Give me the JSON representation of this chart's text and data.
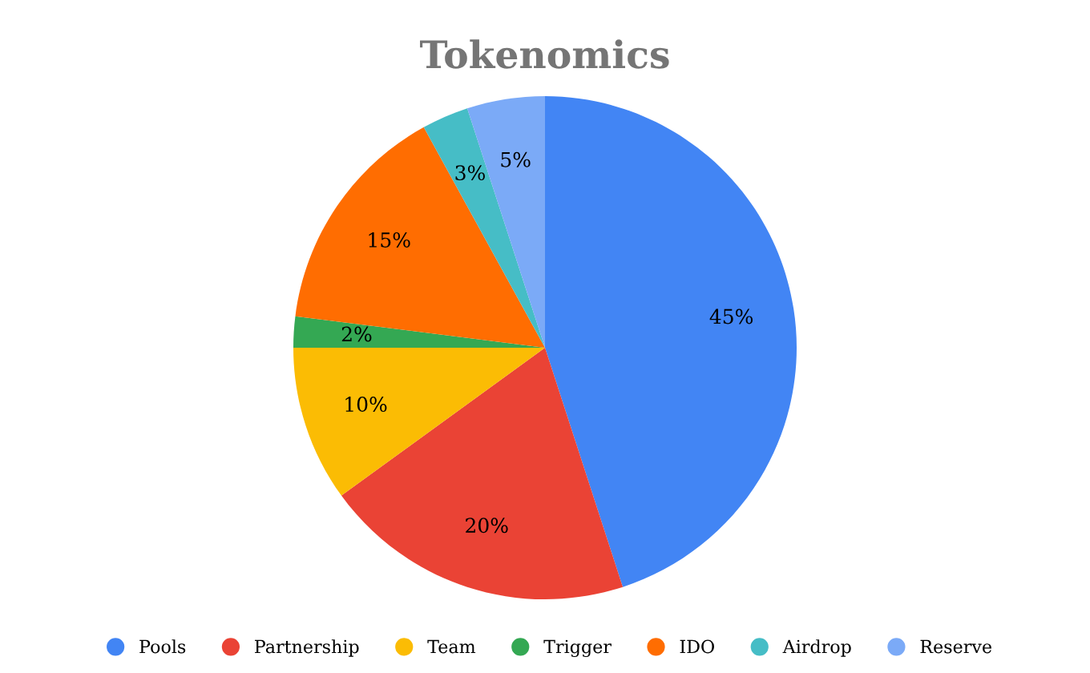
{
  "chart_data": {
    "type": "pie",
    "title": "Tokenomics",
    "categories": [
      "Pools",
      "Partnership",
      "Team",
      "Trigger",
      "IDO",
      "Airdrop",
      "Reserve"
    ],
    "values": [
      45,
      20,
      10,
      2,
      15,
      3,
      5
    ],
    "colors": [
      "#4285f4",
      "#ea4335",
      "#fbbc04",
      "#34a853",
      "#ff6d01",
      "#46bdc6",
      "#7baaf7"
    ],
    "value_labels": [
      "45%",
      "20%",
      "10%",
      "2%",
      "15%",
      "3%",
      "5%"
    ],
    "legend": "bottom"
  }
}
